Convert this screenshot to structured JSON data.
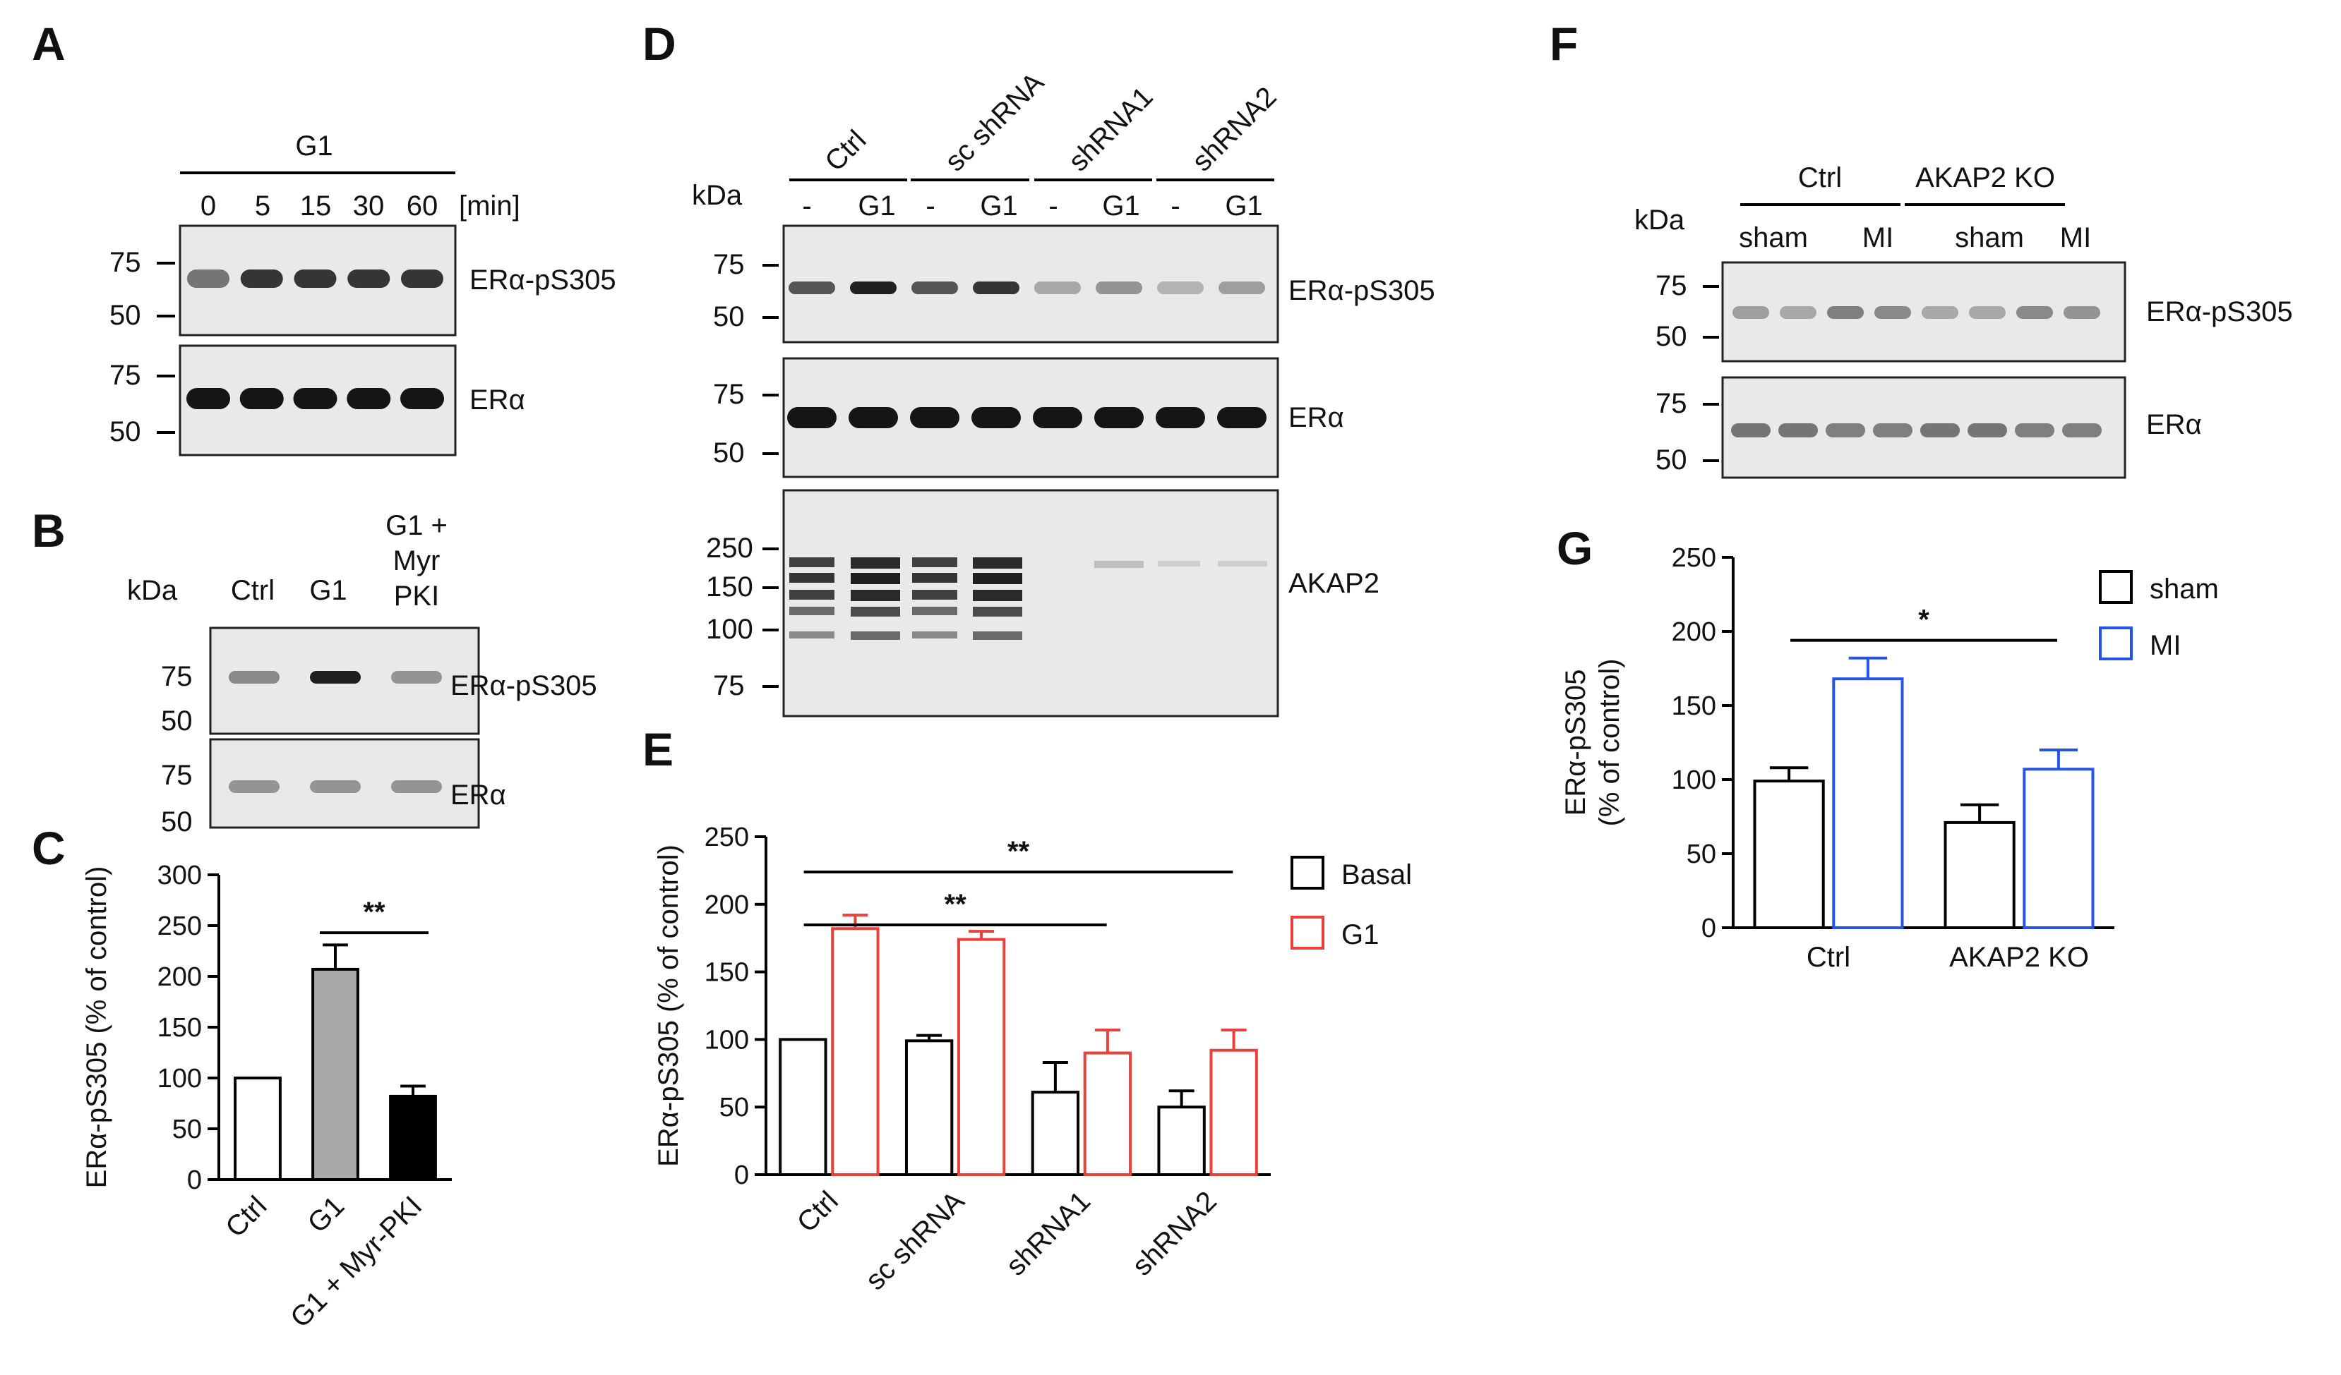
{
  "panel_labels": {
    "a": "A",
    "b": "B",
    "c": "C",
    "d": "D",
    "e": "E",
    "f": "F",
    "g": "G"
  },
  "blot": {
    "a_treatment": "G1",
    "a_timepoints": [
      "0",
      "5",
      "15",
      "30",
      "60"
    ],
    "a_unit": "[min]",
    "kda": "kDa",
    "mw": [
      "75",
      "50",
      "250",
      "150",
      "100"
    ],
    "b_lanes": [
      "Ctrl",
      "G1",
      "G1 +",
      "Myr",
      "PKI"
    ],
    "d_groups": [
      "Ctrl",
      "sc shRNA",
      "shRNA1",
      "shRNA2"
    ],
    "d_minus": "-",
    "d_g1": "G1",
    "f_groups": [
      "Ctrl",
      "AKAP2 KO"
    ],
    "f_lanes": [
      "sham",
      "MI"
    ],
    "targets": {
      "p": "ERα-pS305",
      "t": "ERα",
      "akap": "AKAP2"
    },
    "band_intensity": {
      "a_p": [
        0.55,
        0.85,
        0.85,
        0.85,
        0.85
      ],
      "a_t": [
        1,
        1,
        1,
        1,
        1
      ],
      "b_p": [
        0.45,
        0.95,
        0.4
      ],
      "b_t": [
        0.4,
        0.4,
        0.4
      ],
      "d_p": [
        0.7,
        0.95,
        0.7,
        0.85,
        0.3,
        0.4,
        0.25,
        0.35
      ],
      "d_t": [
        1,
        1,
        1,
        1,
        1,
        1,
        1,
        1
      ],
      "f_p": [
        0.35,
        0.3,
        0.5,
        0.45,
        0.3,
        0.3,
        0.45,
        0.4
      ],
      "f_t": [
        0.55,
        0.55,
        0.5,
        0.5,
        0.55,
        0.55,
        0.5,
        0.5
      ]
    }
  },
  "chart_data": [
    {
      "type": "bar",
      "panel": "C",
      "categories": [
        "Ctrl",
        "G1",
        "G1 + Myr-PKI"
      ],
      "values": [
        100,
        207,
        82
      ],
      "errors": [
        0,
        24,
        10
      ],
      "fills": [
        "#ffffff",
        "#a9a9a9",
        "#000000"
      ],
      "ylabel": "ERα-pS305 (% of control)",
      "ylim": [
        0,
        300
      ],
      "yticks": [
        "0",
        "50",
        "100",
        "150",
        "200",
        "250",
        "300"
      ],
      "significance": [
        {
          "from": 1,
          "to": 2,
          "label": "**"
        }
      ]
    },
    {
      "type": "bar",
      "panel": "E",
      "categories": [
        "Ctrl",
        "sc shRNA",
        "shRNA1",
        "shRNA2"
      ],
      "series": [
        {
          "name": "Basal",
          "color": "#000000",
          "values": [
            100,
            99,
            61,
            50
          ],
          "errors": [
            0,
            4,
            22,
            12
          ]
        },
        {
          "name": "G1",
          "color": "#e8413c",
          "values": [
            182,
            174,
            90,
            92
          ],
          "errors": [
            10,
            6,
            17,
            15
          ]
        }
      ],
      "ylabel": "ERα-pS305 (% of control)",
      "ylim": [
        0,
        250
      ],
      "yticks": [
        "0",
        "50",
        "100",
        "150",
        "200",
        "250"
      ],
      "significance": [
        {
          "from": 0,
          "to": 2,
          "label": "**"
        },
        {
          "from": 0,
          "to": 3,
          "label": "**"
        }
      ]
    },
    {
      "type": "bar",
      "panel": "G",
      "categories": [
        "Ctrl",
        "AKAP2 KO"
      ],
      "series": [
        {
          "name": "sham",
          "color": "#000000",
          "values": [
            99,
            71
          ],
          "errors": [
            9,
            12
          ]
        },
        {
          "name": "MI",
          "color": "#2454e8",
          "values": [
            168,
            107
          ],
          "errors": [
            14,
            13
          ]
        }
      ],
      "ylabel": "ERα-pS305 (% of control)",
      "ylim": [
        0,
        250
      ],
      "yticks": [
        "0",
        "50",
        "100",
        "150",
        "200",
        "250"
      ],
      "significance": [
        {
          "from": 0,
          "to": 1,
          "label": "*"
        }
      ]
    }
  ]
}
